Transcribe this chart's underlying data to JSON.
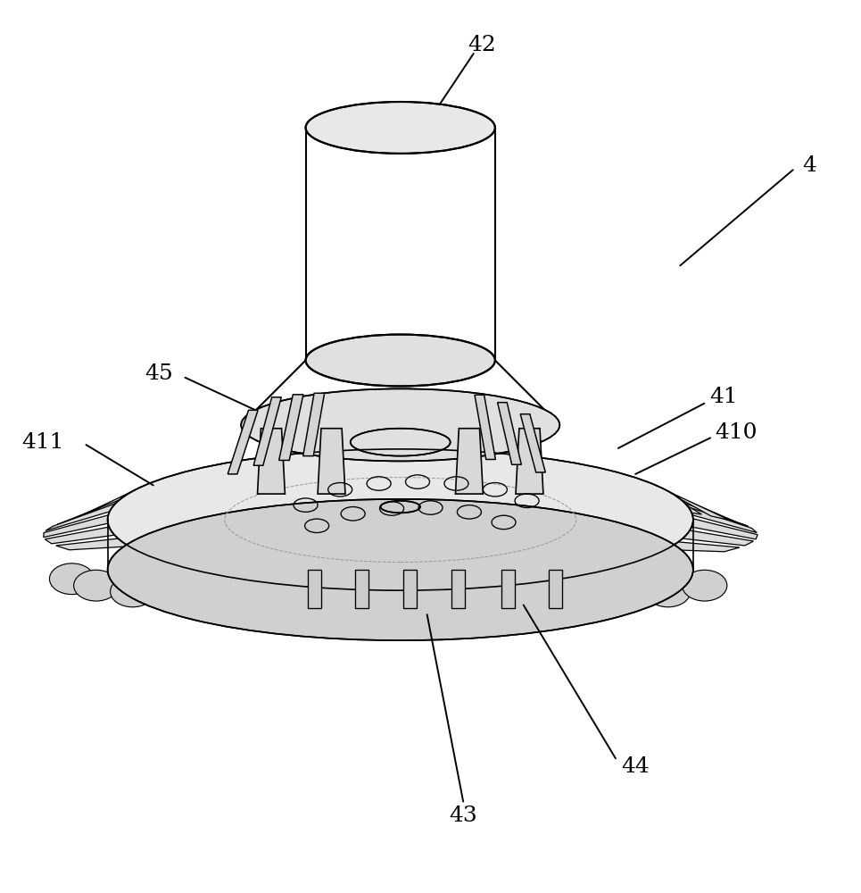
{
  "background_color": "#ffffff",
  "line_color": "#000000",
  "line_width": 1.2,
  "figsize": [
    9.65,
    10.0
  ],
  "dpi": 100,
  "label_fontsize": 18
}
